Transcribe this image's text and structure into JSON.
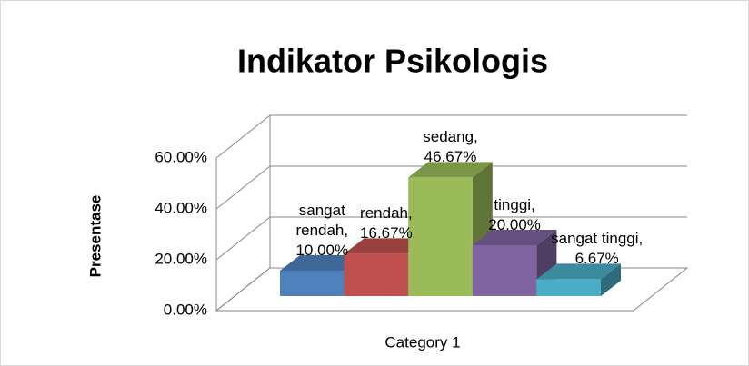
{
  "chart_data": {
    "type": "bar3d",
    "title": "Indikator Psikologis",
    "y_label": "Presentase",
    "categories": [
      "Category 1"
    ],
    "series": [
      {
        "name": "sangat rendah",
        "color": "#4f81bd",
        "values": [
          10
        ],
        "value_labels": [
          "sangat rendah, 10.00%"
        ]
      },
      {
        "name": "rendah",
        "color": "#c0504d",
        "values": [
          16.67
        ],
        "value_labels": [
          "rendah, 16.67%"
        ]
      },
      {
        "name": "sedang",
        "color": "#9bbb59",
        "values": [
          46.67
        ],
        "value_labels": [
          "sedang, 46.67%"
        ]
      },
      {
        "name": "tinggi",
        "color": "#8064a2",
        "values": [
          20
        ],
        "value_labels": [
          "tinggi, 20.00%"
        ]
      },
      {
        "name": "sangat tinggi",
        "color": "#4bacc6",
        "values": [
          6.67
        ],
        "value_labels": [
          "sangat tinggi, 6.67%"
        ]
      }
    ],
    "ylim": [
      0,
      60
    ],
    "yticks": [
      {
        "value": 0,
        "label": "0.00%"
      },
      {
        "value": 20,
        "label": "20.00%"
      },
      {
        "value": 40,
        "label": "40.00%"
      },
      {
        "value": 60,
        "label": "60.00%"
      }
    ],
    "grid": true
  }
}
